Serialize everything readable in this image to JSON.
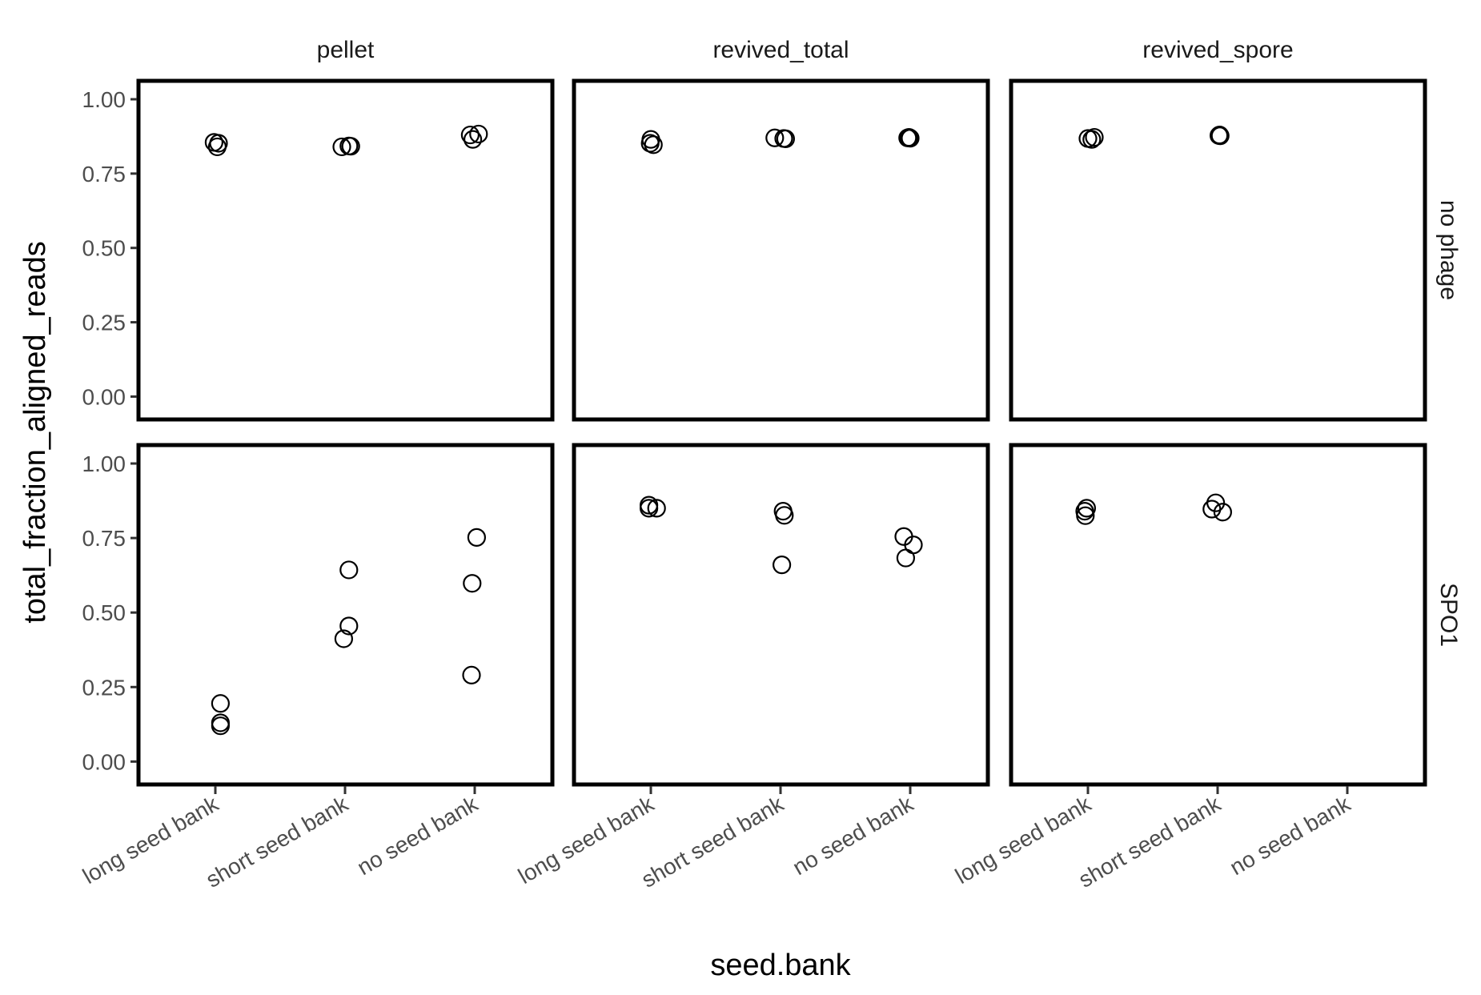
{
  "chart_data": {
    "type": "scatter",
    "xlabel": "seed.bank",
    "ylabel": "total_fraction_aligned_reads",
    "categories": [
      "long seed bank",
      "short seed bank",
      "no seed bank"
    ],
    "columns": [
      "pellet",
      "revived_total",
      "revived_spore"
    ],
    "rows": [
      "no phage",
      "SPO1"
    ],
    "y_ticks": [
      "0.00",
      "0.25",
      "0.50",
      "0.75",
      "1.00"
    ],
    "ylim": [
      -0.05,
      1.035
    ],
    "grid": false,
    "legend": "none",
    "panels": [
      {
        "column": "pellet",
        "row": "no phage",
        "points": [
          {
            "category": "long seed bank",
            "jitter": -0.02,
            "y": 0.855
          },
          {
            "category": "long seed bank",
            "jitter": 0.05,
            "y": 0.852
          },
          {
            "category": "long seed bank",
            "jitter": 0.03,
            "y": 0.84
          },
          {
            "category": "short seed bank",
            "jitter": -0.05,
            "y": 0.84
          },
          {
            "category": "short seed bank",
            "jitter": 0.06,
            "y": 0.843
          },
          {
            "category": "short seed bank",
            "jitter": 0.09,
            "y": 0.842
          },
          {
            "category": "no seed bank",
            "jitter": -0.07,
            "y": 0.88
          },
          {
            "category": "no seed bank",
            "jitter": -0.03,
            "y": 0.865
          },
          {
            "category": "no seed bank",
            "jitter": 0.06,
            "y": 0.883
          }
        ]
      },
      {
        "column": "revived_total",
        "row": "no phage",
        "points": [
          {
            "category": "long seed bank",
            "jitter": 0.0,
            "y": 0.865
          },
          {
            "category": "long seed bank",
            "jitter": -0.01,
            "y": 0.852
          },
          {
            "category": "long seed bank",
            "jitter": 0.04,
            "y": 0.847
          },
          {
            "category": "short seed bank",
            "jitter": -0.09,
            "y": 0.87
          },
          {
            "category": "short seed bank",
            "jitter": 0.05,
            "y": 0.868
          },
          {
            "category": "short seed bank",
            "jitter": 0.08,
            "y": 0.867
          },
          {
            "category": "no seed bank",
            "jitter": -0.04,
            "y": 0.87
          },
          {
            "category": "no seed bank",
            "jitter": -0.02,
            "y": 0.872
          },
          {
            "category": "no seed bank",
            "jitter": 0.0,
            "y": 0.869
          }
        ]
      },
      {
        "column": "revived_spore",
        "row": "no phage",
        "points": [
          {
            "category": "long seed bank",
            "jitter": 0.0,
            "y": 0.868
          },
          {
            "category": "long seed bank",
            "jitter": 0.06,
            "y": 0.865
          },
          {
            "category": "long seed bank",
            "jitter": 0.1,
            "y": 0.872
          },
          {
            "category": "short seed bank",
            "jitter": 0.02,
            "y": 0.878
          },
          {
            "category": "short seed bank",
            "jitter": 0.03,
            "y": 0.88
          },
          {
            "category": "short seed bank",
            "jitter": 0.04,
            "y": 0.877
          }
        ]
      },
      {
        "column": "pellet",
        "row": "SPO1",
        "points": [
          {
            "category": "long seed bank",
            "jitter": 0.08,
            "y": 0.195
          },
          {
            "category": "long seed bank",
            "jitter": 0.08,
            "y": 0.13
          },
          {
            "category": "long seed bank",
            "jitter": 0.08,
            "y": 0.12
          },
          {
            "category": "short seed bank",
            "jitter": -0.02,
            "y": 0.412
          },
          {
            "category": "short seed bank",
            "jitter": 0.06,
            "y": 0.455
          },
          {
            "category": "short seed bank",
            "jitter": 0.06,
            "y": 0.643
          },
          {
            "category": "no seed bank",
            "jitter": -0.05,
            "y": 0.29
          },
          {
            "category": "no seed bank",
            "jitter": -0.04,
            "y": 0.598
          },
          {
            "category": "no seed bank",
            "jitter": 0.03,
            "y": 0.752
          }
        ]
      },
      {
        "column": "revived_total",
        "row": "SPO1",
        "points": [
          {
            "category": "long seed bank",
            "jitter": -0.03,
            "y": 0.86
          },
          {
            "category": "long seed bank",
            "jitter": -0.03,
            "y": 0.85
          },
          {
            "category": "long seed bank",
            "jitter": 0.09,
            "y": 0.85
          },
          {
            "category": "short seed bank",
            "jitter": 0.04,
            "y": 0.84
          },
          {
            "category": "short seed bank",
            "jitter": 0.06,
            "y": 0.826
          },
          {
            "category": "short seed bank",
            "jitter": 0.02,
            "y": 0.66
          },
          {
            "category": "no seed bank",
            "jitter": -0.1,
            "y": 0.755
          },
          {
            "category": "no seed bank",
            "jitter": 0.05,
            "y": 0.727
          },
          {
            "category": "no seed bank",
            "jitter": -0.07,
            "y": 0.683
          }
        ]
      },
      {
        "column": "revived_spore",
        "row": "SPO1",
        "points": [
          {
            "category": "long seed bank",
            "jitter": -0.05,
            "y": 0.84
          },
          {
            "category": "long seed bank",
            "jitter": -0.04,
            "y": 0.825
          },
          {
            "category": "long seed bank",
            "jitter": -0.02,
            "y": 0.85
          },
          {
            "category": "short seed bank",
            "jitter": -0.09,
            "y": 0.847
          },
          {
            "category": "short seed bank",
            "jitter": -0.03,
            "y": 0.868
          },
          {
            "category": "short seed bank",
            "jitter": 0.08,
            "y": 0.837
          }
        ]
      }
    ]
  }
}
